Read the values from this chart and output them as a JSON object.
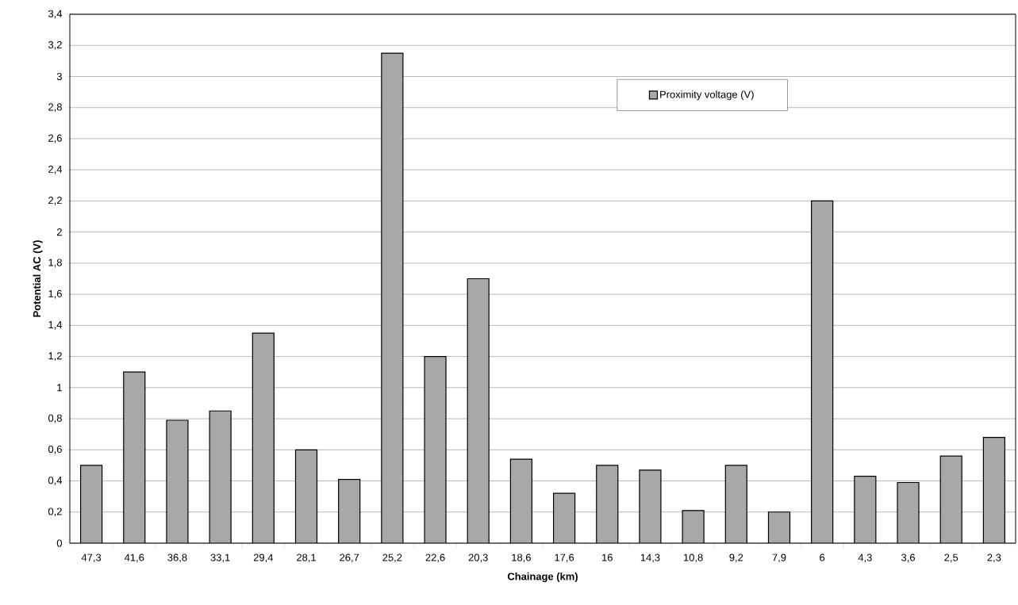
{
  "chart_data": {
    "type": "bar",
    "xlabel": "Chainage (km)",
    "ylabel": "Potential AC (V)",
    "categories": [
      "47,3",
      "41,6",
      "36,8",
      "33,1",
      "29,4",
      "28,1",
      "26,7",
      "25,2",
      "22,6",
      "20,3",
      "18,6",
      "17,6",
      "16",
      "14,3",
      "10,8",
      "9,2",
      "7,9",
      "6",
      "4,3",
      "3,6",
      "2,5",
      "2,3"
    ],
    "series": [
      {
        "name": "Proximity voltage (V)",
        "color": "#a8a8a8",
        "values": [
          0.5,
          1.1,
          0.79,
          0.85,
          1.35,
          0.6,
          0.41,
          3.15,
          1.2,
          1.7,
          0.54,
          0.32,
          0.5,
          0.47,
          0.21,
          0.5,
          0.2,
          2.2,
          0.43,
          0.39,
          0.56,
          0.68
        ]
      }
    ],
    "ylim": [
      0,
      3.4
    ],
    "yticks": [
      0,
      {
        "value": 0.2,
        "label": "0,2"
      },
      {
        "value": 0.4,
        "label": "0,4"
      },
      {
        "value": 0.6,
        "label": "0,6"
      },
      {
        "value": 0.8,
        "label": "0,8"
      },
      1,
      {
        "value": 1.2,
        "label": "1,2"
      },
      {
        "value": 1.4,
        "label": "1,4"
      },
      {
        "value": 1.6,
        "label": "1,6"
      },
      {
        "value": 1.8,
        "label": "1,8"
      },
      2,
      {
        "value": 2.2,
        "label": "2,2"
      },
      {
        "value": 2.4,
        "label": "2,4"
      },
      {
        "value": 2.6,
        "label": "2,6"
      },
      {
        "value": 2.8,
        "label": "2,8"
      },
      3,
      {
        "value": 3.2,
        "label": "3,2"
      },
      {
        "value": 3.4,
        "label": "3,4"
      }
    ],
    "grid": "y",
    "legend": "top right"
  }
}
